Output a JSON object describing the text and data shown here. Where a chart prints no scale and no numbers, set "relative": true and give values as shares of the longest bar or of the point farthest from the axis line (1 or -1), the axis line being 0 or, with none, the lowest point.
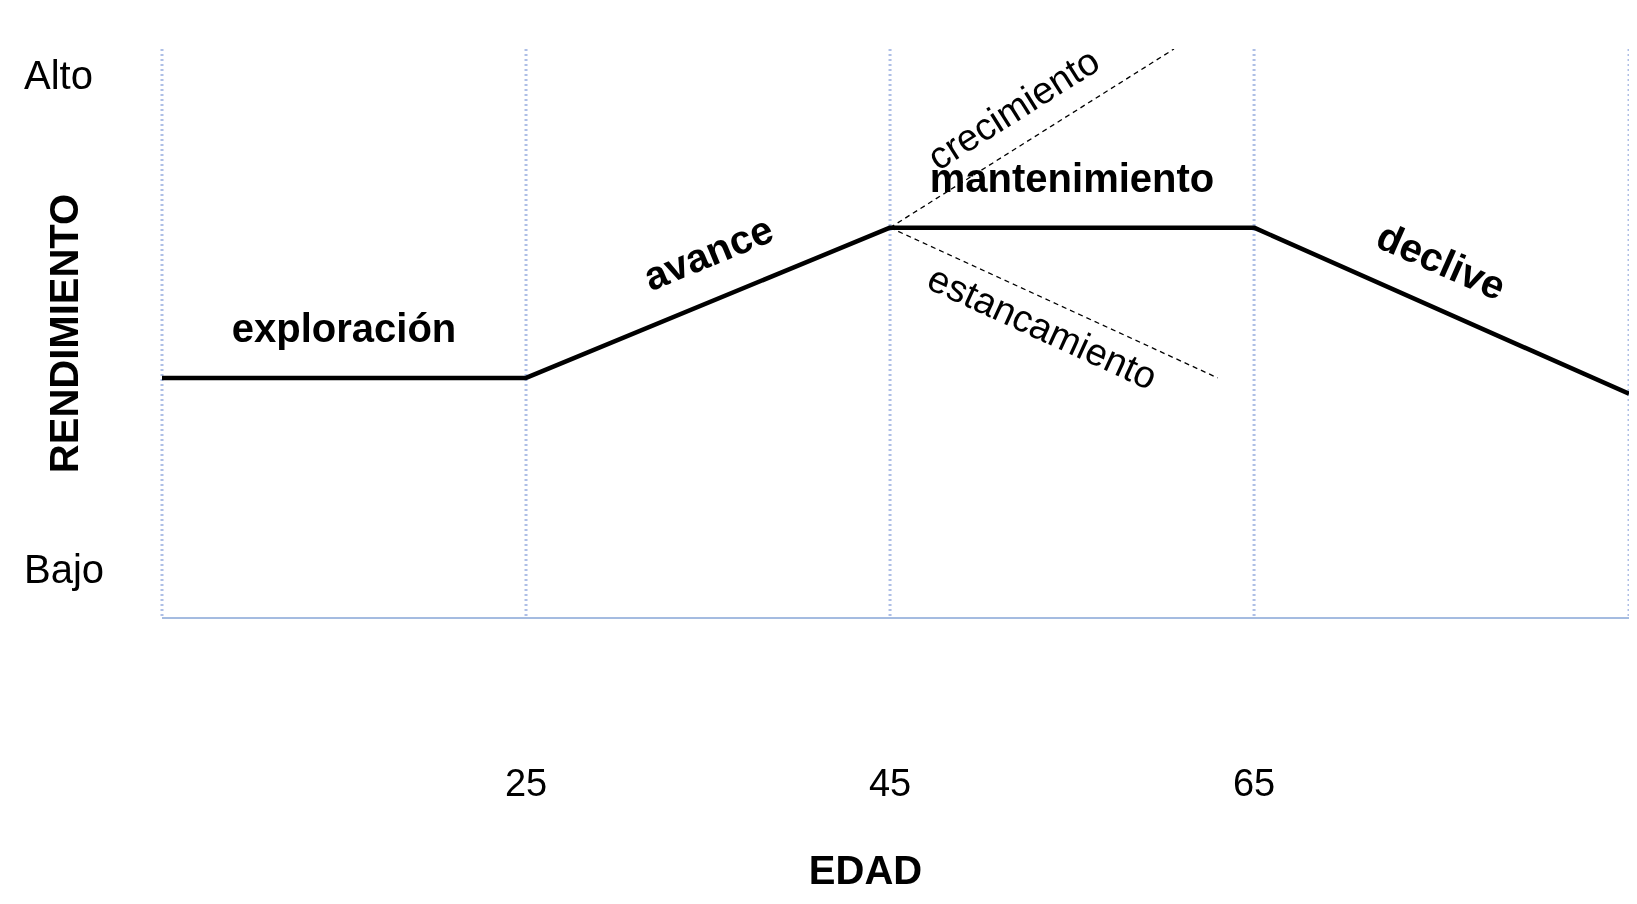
{
  "chart_data": {
    "type": "line",
    "relative": true,
    "xlabel": "EDAD",
    "ylabel": "RENDIMIENTO",
    "xlim": [
      5,
      85.6
    ],
    "xticks": [
      25,
      45,
      65
    ],
    "grid": "x",
    "marker": "none",
    "series": [
      {
        "color": "#000000",
        "line_style": "solid",
        "x": [
          5,
          25,
          45,
          65,
          85.6
        ],
        "values": [
          0.422,
          0.422,
          0.686,
          0.686,
          0.394
        ]
      },
      {
        "name": "crecimiento",
        "color": "#000000",
        "line_style": "dashed",
        "x": [
          45,
          60.6
        ],
        "values": [
          0.686,
          1
        ]
      },
      {
        "name": "estancamiento",
        "color": "#000000",
        "line_style": "dashed",
        "x": [
          45,
          63
        ],
        "values": [
          0.686,
          0.422
        ]
      }
    ],
    "annotations": [
      "exploración",
      "avance",
      "mantenimiento",
      "declive",
      "Alto",
      "Bajo"
    ]
  }
}
